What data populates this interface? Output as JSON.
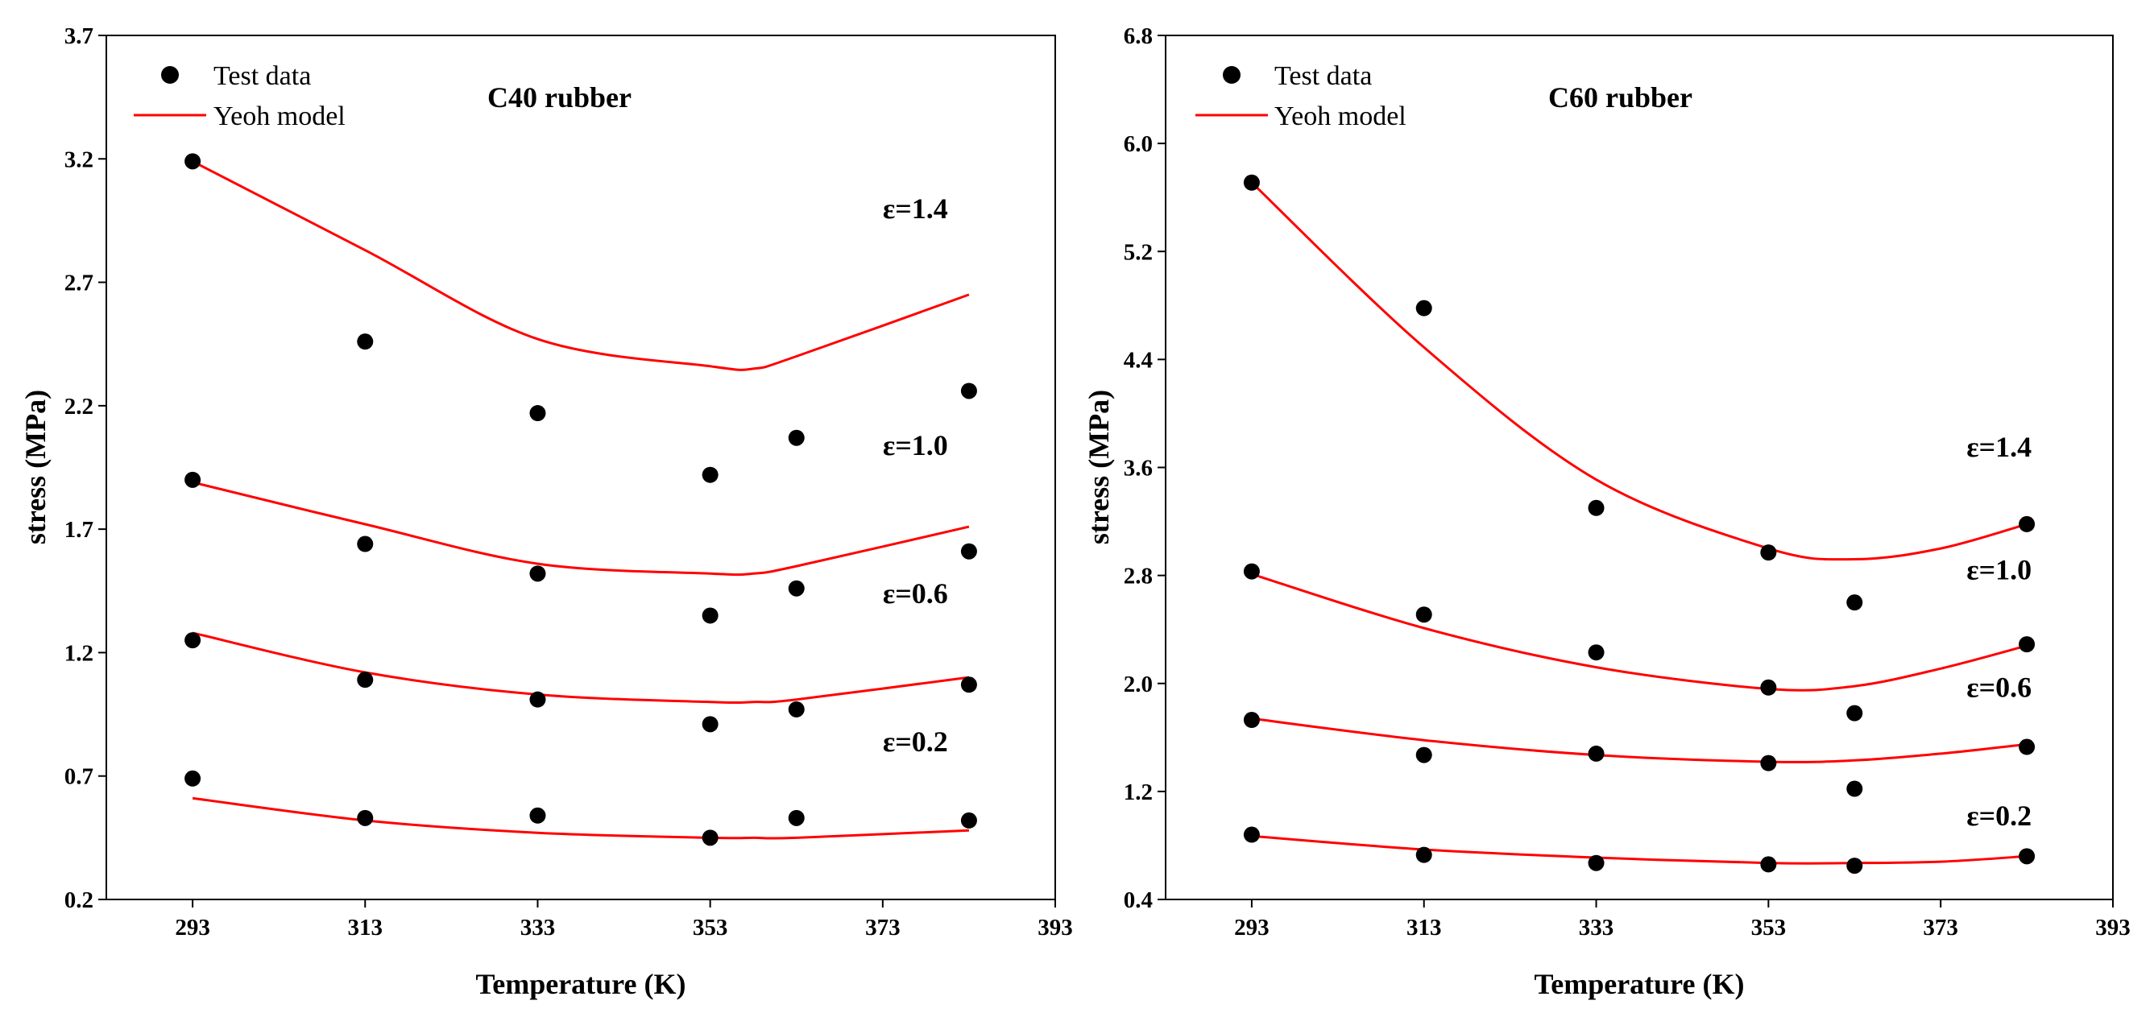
{
  "chart_data": [
    {
      "type": "scatter",
      "title": "C40 rubber",
      "xlabel": "Temperature (K)",
      "ylabel": "stress (MPa)",
      "xlim": [
        283,
        393
      ],
      "ylim": [
        0.2,
        3.7
      ],
      "x_ticks": [
        293,
        313,
        333,
        353,
        373,
        393
      ],
      "x_tick_labels": [
        "293",
        "313",
        "333",
        "353",
        "373",
        "393"
      ],
      "y_ticks": [
        0.2,
        0.7,
        1.2,
        1.7,
        2.2,
        2.7,
        3.2,
        3.7
      ],
      "y_tick_labels": [
        "0.2",
        "0.7",
        "1.2",
        "1.7",
        "2.2",
        "2.7",
        "3.2",
        "3.7"
      ],
      "legend": {
        "position": "top-left",
        "test_label": "Test data",
        "model_label": "Yeoh model"
      },
      "colors": {
        "points": "#000000",
        "model": "#ff0000"
      },
      "series": [
        {
          "name": "ε=0.2",
          "label": "ε=0.2",
          "label_anchor": [
            373,
            0.8
          ],
          "test_x": [
            293,
            313,
            333,
            353,
            363,
            383
          ],
          "test_y": [
            0.69,
            0.53,
            0.54,
            0.45,
            0.53,
            0.52
          ],
          "model_x": [
            293,
            313,
            333,
            353,
            358,
            363,
            383
          ],
          "model_y": [
            0.61,
            0.52,
            0.47,
            0.45,
            0.45,
            0.45,
            0.48
          ]
        },
        {
          "name": "ε=0.6",
          "label": "ε=0.6",
          "label_anchor": [
            373,
            1.4
          ],
          "test_x": [
            293,
            313,
            333,
            353,
            363,
            383
          ],
          "test_y": [
            1.25,
            1.09,
            1.01,
            0.91,
            0.97,
            1.07
          ],
          "model_x": [
            293,
            313,
            333,
            353,
            358,
            363,
            383
          ],
          "model_y": [
            1.28,
            1.12,
            1.03,
            1.0,
            1.0,
            1.01,
            1.1
          ]
        },
        {
          "name": "ε=1.0",
          "label": "ε=1.0",
          "label_anchor": [
            373,
            2.0
          ],
          "test_x": [
            293,
            313,
            333,
            353,
            363,
            383
          ],
          "test_y": [
            1.9,
            1.64,
            1.52,
            1.35,
            1.46,
            1.61
          ],
          "model_x": [
            293,
            313,
            333,
            353,
            358,
            363,
            383
          ],
          "model_y": [
            1.89,
            1.72,
            1.56,
            1.52,
            1.52,
            1.55,
            1.71
          ]
        },
        {
          "name": "ε=1.4",
          "label": "ε=1.4",
          "label_anchor": [
            373,
            2.96
          ],
          "test_x": [
            293,
            313,
            333,
            353,
            363,
            383
          ],
          "test_y": [
            3.19,
            2.46,
            2.17,
            1.92,
            2.07,
            2.26
          ],
          "model_x": [
            293,
            313,
            333,
            353,
            358,
            363,
            383
          ],
          "model_y": [
            3.19,
            2.83,
            2.47,
            2.36,
            2.35,
            2.4,
            2.65
          ]
        }
      ]
    },
    {
      "type": "scatter",
      "title": "C60 rubber",
      "xlabel": "Temperature (K)",
      "ylabel": "stress (MPa)",
      "xlim": [
        283,
        393
      ],
      "ylim": [
        0.4,
        6.8
      ],
      "x_ticks": [
        293,
        313,
        333,
        353,
        373,
        393
      ],
      "x_tick_labels": [
        "293",
        "313",
        "333",
        "353",
        "373",
        "393"
      ],
      "y_ticks": [
        0.4,
        1.2,
        2.0,
        2.8,
        3.6,
        4.4,
        5.2,
        6.0,
        6.8
      ],
      "y_tick_labels": [
        "0.4",
        "1.2",
        "2.0",
        "2.8",
        "3.6",
        "4.4",
        "5.2",
        "6.0",
        "6.8"
      ],
      "legend": {
        "position": "top-left",
        "test_label": "Test data",
        "model_label": "Yeoh model"
      },
      "colors": {
        "points": "#000000",
        "model": "#ff0000"
      },
      "series": [
        {
          "name": "ε=0.2",
          "label": "ε=0.2",
          "label_anchor": [
            376,
            0.95
          ],
          "test_x": [
            293,
            313,
            333,
            353,
            363,
            383
          ],
          "test_y": [
            0.88,
            0.73,
            0.67,
            0.66,
            0.65,
            0.72
          ],
          "model_x": [
            293,
            313,
            333,
            353,
            363,
            373,
            383
          ],
          "model_y": [
            0.87,
            0.77,
            0.71,
            0.67,
            0.67,
            0.68,
            0.72
          ]
        },
        {
          "name": "ε=0.6",
          "label": "ε=0.6",
          "label_anchor": [
            376,
            1.9
          ],
          "test_x": [
            293,
            313,
            333,
            353,
            363,
            383
          ],
          "test_y": [
            1.73,
            1.47,
            1.48,
            1.41,
            1.22,
            1.53
          ],
          "model_x": [
            293,
            313,
            333,
            353,
            363,
            373,
            383
          ],
          "model_y": [
            1.74,
            1.58,
            1.47,
            1.42,
            1.43,
            1.48,
            1.55
          ]
        },
        {
          "name": "ε=1.0",
          "label": "ε=1.0",
          "label_anchor": [
            376,
            2.77
          ],
          "test_x": [
            293,
            313,
            333,
            353,
            363,
            383
          ],
          "test_y": [
            2.83,
            2.51,
            2.23,
            1.97,
            1.78,
            2.29
          ],
          "model_x": [
            293,
            313,
            333,
            353,
            363,
            373,
            383
          ],
          "model_y": [
            2.81,
            2.41,
            2.12,
            1.96,
            1.98,
            2.11,
            2.28
          ]
        },
        {
          "name": "ε=1.4",
          "label": "ε=1.4",
          "label_anchor": [
            376,
            3.68
          ],
          "test_x": [
            293,
            313,
            333,
            353,
            363,
            383
          ],
          "test_y": [
            5.71,
            4.78,
            3.3,
            2.97,
            2.6,
            3.18
          ],
          "model_x": [
            293,
            313,
            333,
            353,
            363,
            373,
            383
          ],
          "model_y": [
            5.71,
            4.49,
            3.51,
            3.0,
            2.92,
            3.0,
            3.18
          ]
        }
      ]
    }
  ]
}
